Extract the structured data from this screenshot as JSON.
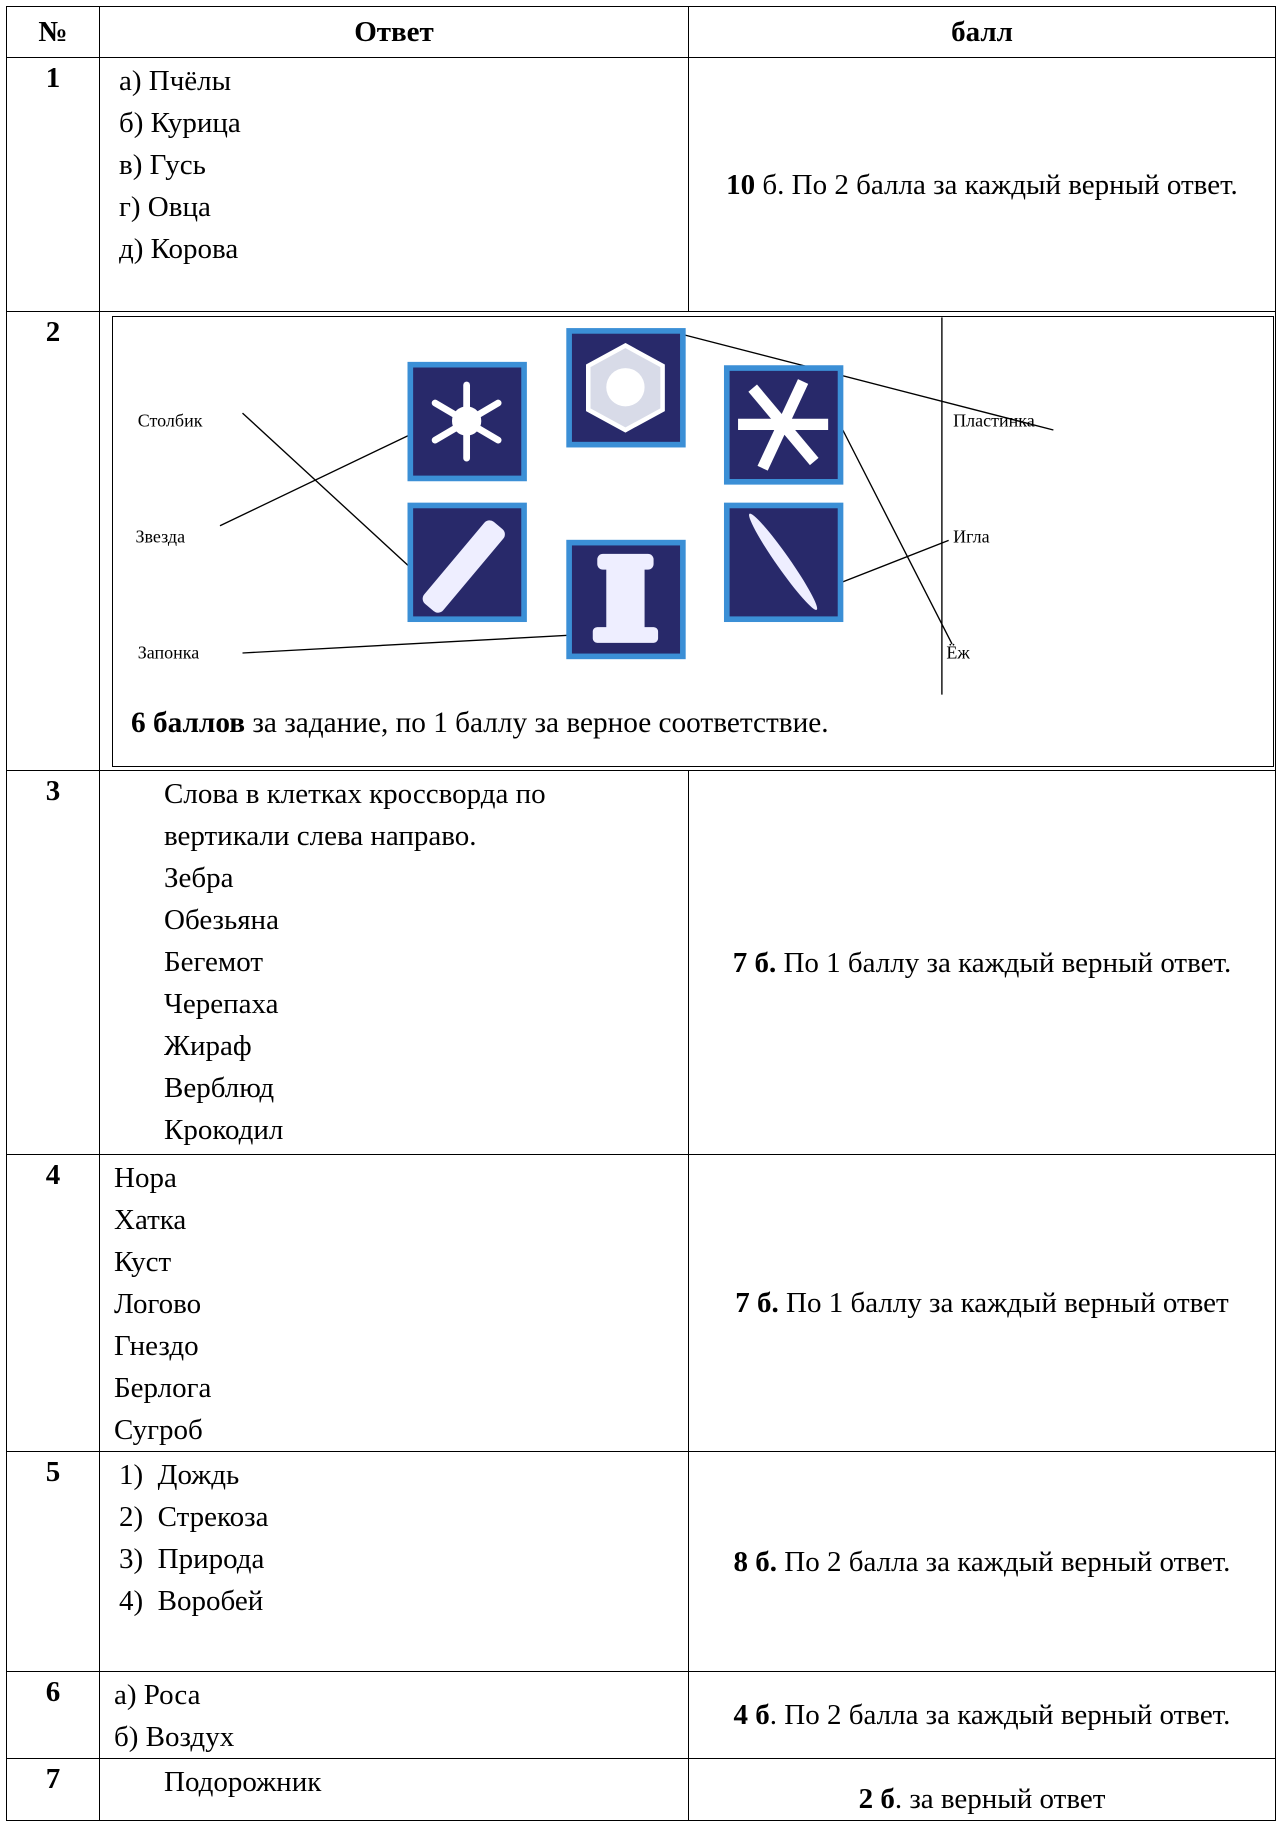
{
  "table": {
    "headers": [
      "№",
      "Ответ",
      "балл"
    ],
    "rows": [
      {
        "number": "1",
        "answer": [
          "а) Пчёлы",
          "б) Курица",
          "в) Гусь",
          "г) Овца",
          "д) Корова"
        ],
        "score": {
          "bold": "10",
          "text": " б. По 2 балла за каждый верный ответ."
        }
      },
      {
        "number": "2",
        "diagram": {
          "labels": [
            "Столбик",
            "Звезда",
            "Запонка",
            "Пластинка",
            "Игла",
            "Ёж"
          ],
          "note": {
            "bold": "6 баллов",
            "text": " за задание, по 1 баллу за верное соответствие."
          }
        }
      },
      {
        "number": "3",
        "answer": [
          "Слова в клетках кроссворда по",
          "вертикали слева направо.",
          "Зебра",
          "Обезьяна",
          "Бегемот",
          "Черепаха",
          "Жираф",
          "Верблюд",
          "Крокодил"
        ],
        "score": {
          "bold": "7 б.",
          "text": " По 1 баллу за каждый верный ответ."
        }
      },
      {
        "number": "4",
        "answer": [
          "Нора",
          "Хатка",
          "Куст",
          "Логово",
          "Гнездо",
          "Берлога",
          "Сугроб"
        ],
        "score": {
          "bold": "7 б.",
          "text": " По 1 баллу за каждый верный ответ"
        }
      },
      {
        "number": "5",
        "answer": [
          "1)  Дождь",
          "2)  Стрекоза",
          "3)  Природа",
          "4)  Воробей"
        ],
        "score": {
          "bold": "8 б.",
          "text": " По 2 балла за каждый верный ответ."
        }
      },
      {
        "number": "6",
        "answer": [
          "а) Роса",
          "б) Воздух"
        ],
        "score": {
          "bold": "4 б",
          "text": ". По 2 балла за каждый верный ответ."
        }
      },
      {
        "number": "7",
        "answer": [
          "Подорожник"
        ],
        "score": {
          "bold": "2 б",
          "text": ". за верный ответ"
        }
      }
    ]
  }
}
